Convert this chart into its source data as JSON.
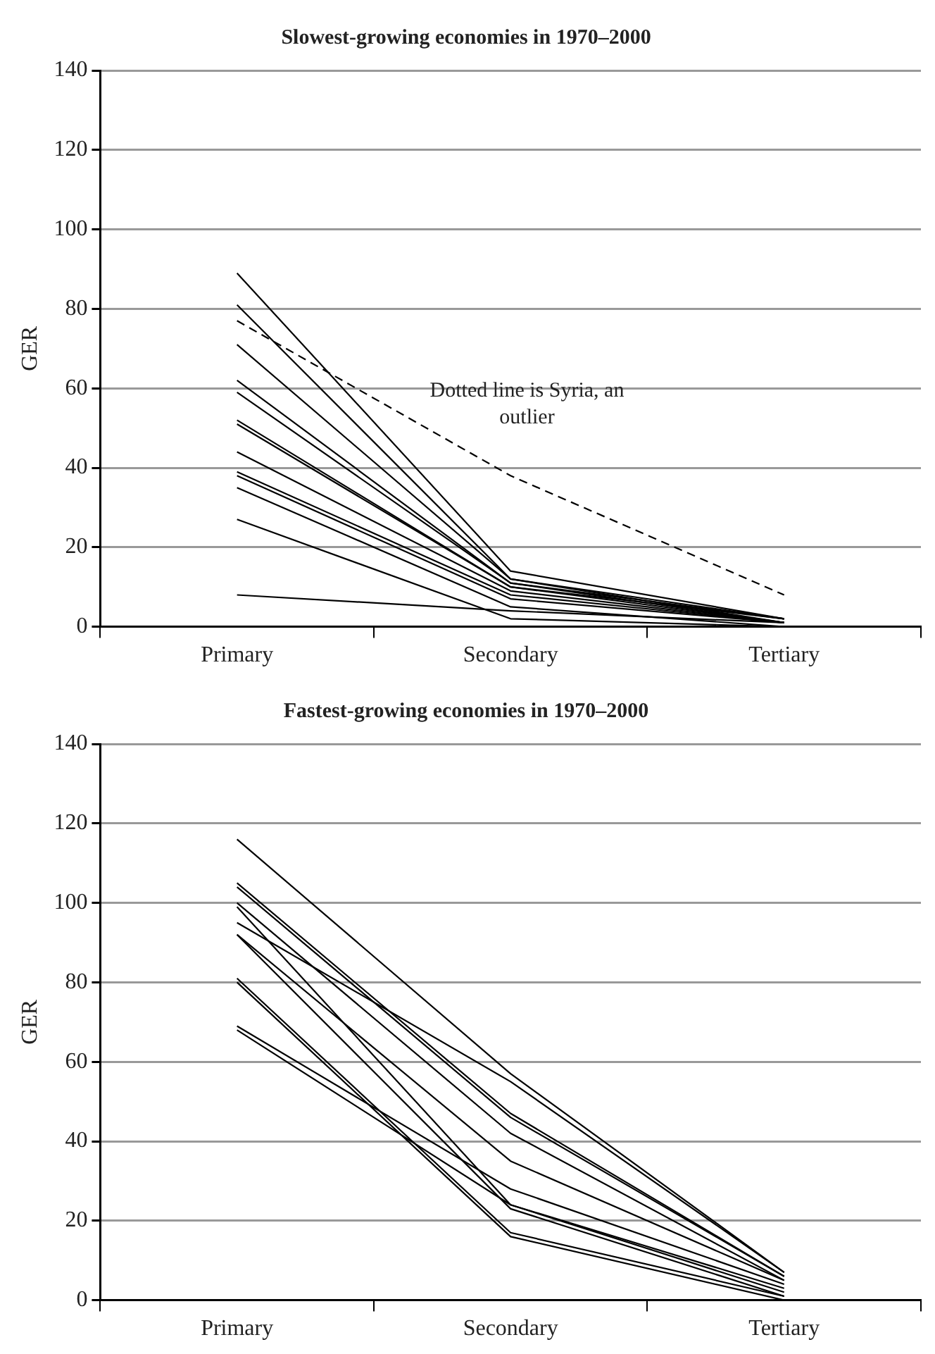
{
  "chart_data": [
    {
      "type": "line",
      "title": "Slowest-growing economies in 1970–2000",
      "ylabel": "GER",
      "categories": [
        "Primary",
        "Secondary",
        "Tertiary"
      ],
      "ylim": [
        0,
        140
      ],
      "yticks": [
        0,
        20,
        40,
        60,
        80,
        100,
        120,
        140
      ],
      "grid": "y",
      "legend": false,
      "marker": "none",
      "line_style": "solid",
      "annotations": [
        "Dotted line is Syria, an outlier"
      ],
      "series": [
        {
          "color": "#000000",
          "values": [
            89,
            14,
            2
          ]
        },
        {
          "color": "#000000",
          "values": [
            81,
            12,
            2
          ]
        },
        {
          "color": "#000000",
          "values": [
            77,
            38,
            8
          ],
          "line_style": "dashed"
        },
        {
          "color": "#000000",
          "values": [
            71,
            12,
            1
          ]
        },
        {
          "color": "#000000",
          "values": [
            62,
            11,
            2
          ]
        },
        {
          "color": "#000000",
          "values": [
            59,
            11,
            1
          ]
        },
        {
          "color": "#000000",
          "values": [
            52,
            10,
            1
          ]
        },
        {
          "color": "#000000",
          "values": [
            51,
            10,
            2
          ]
        },
        {
          "color": "#000000",
          "values": [
            44,
            9,
            1
          ]
        },
        {
          "color": "#000000",
          "values": [
            39,
            8,
            1
          ]
        },
        {
          "color": "#000000",
          "values": [
            38,
            7,
            1
          ]
        },
        {
          "color": "#000000",
          "values": [
            35,
            5,
            0
          ]
        },
        {
          "color": "#000000",
          "values": [
            27,
            2,
            0
          ]
        },
        {
          "color": "#000000",
          "values": [
            8,
            4,
            1
          ]
        }
      ]
    },
    {
      "type": "line",
      "title": "Fastest-growing economies in 1970–2000",
      "ylabel": "GER",
      "categories": [
        "Primary",
        "Secondary",
        "Tertiary"
      ],
      "ylim": [
        0,
        140
      ],
      "yticks": [
        0,
        20,
        40,
        60,
        80,
        100,
        120,
        140
      ],
      "grid": "y",
      "legend": false,
      "marker": "none",
      "line_style": "solid",
      "series": [
        {
          "color": "#000000",
          "values": [
            116,
            57,
            7
          ]
        },
        {
          "color": "#000000",
          "values": [
            105,
            47,
            6
          ]
        },
        {
          "color": "#000000",
          "values": [
            104,
            46,
            6
          ]
        },
        {
          "color": "#000000",
          "values": [
            100,
            42,
            5
          ]
        },
        {
          "color": "#000000",
          "values": [
            99,
            24,
            2
          ]
        },
        {
          "color": "#000000",
          "values": [
            95,
            55,
            7
          ]
        },
        {
          "color": "#000000",
          "values": [
            92,
            35,
            5
          ]
        },
        {
          "color": "#000000",
          "values": [
            92,
            23,
            1
          ]
        },
        {
          "color": "#000000",
          "values": [
            81,
            17,
            1
          ]
        },
        {
          "color": "#000000",
          "values": [
            80,
            16,
            0
          ]
        },
        {
          "color": "#000000",
          "values": [
            69,
            28,
            4
          ]
        },
        {
          "color": "#000000",
          "values": [
            68,
            24,
            3
          ]
        }
      ]
    }
  ]
}
